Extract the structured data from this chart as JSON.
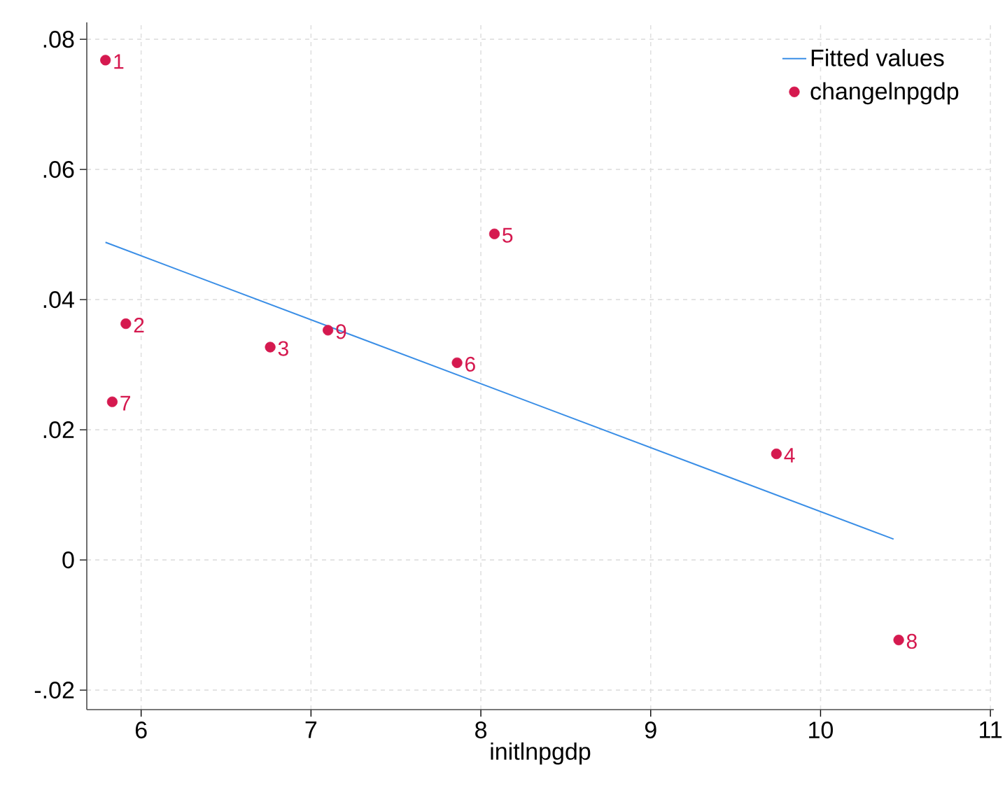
{
  "chart_data": {
    "type": "scatter",
    "xlabel": "initlnpgdp",
    "xlim": [
      5.68,
      11.02
    ],
    "ylim": [
      -0.023,
      0.0826
    ],
    "xticks": [
      6,
      7,
      8,
      9,
      10,
      11
    ],
    "yticks": [
      {
        "value": -0.02,
        "label": "-.02"
      },
      0,
      {
        "value": 0.02,
        "label": ".02"
      },
      {
        "value": 0.04,
        "label": ".04"
      },
      {
        "value": 0.06,
        "label": ".06"
      },
      {
        "value": 0.08,
        "label": ".08"
      }
    ],
    "grid": true,
    "legend": "top right",
    "series": [
      {
        "name": "Fitted values",
        "type": "line",
        "color": "#3a8ee6",
        "x": [
          5.79,
          10.43
        ],
        "values": [
          0.0488,
          0.0032
        ]
      },
      {
        "name": "changelnpgdp",
        "type": "scatter",
        "marker": "circle",
        "color": "#d5194f",
        "x": [
          5.79,
          5.91,
          6.76,
          9.74,
          8.08,
          7.86,
          5.83,
          10.46,
          7.1
        ],
        "values": [
          0.0768,
          0.0363,
          0.0327,
          0.0163,
          0.0501,
          0.0303,
          0.0243,
          -0.0123,
          0.0353
        ]
      }
    ],
    "annotations": [
      {
        "text": "1",
        "x": 5.79,
        "y": 0.0768
      },
      {
        "text": "2",
        "x": 5.91,
        "y": 0.0363
      },
      {
        "text": "3",
        "x": 6.76,
        "y": 0.0327
      },
      {
        "text": "4",
        "x": 9.74,
        "y": 0.0163
      },
      {
        "text": "5",
        "x": 8.08,
        "y": 0.0501
      },
      {
        "text": "6",
        "x": 7.86,
        "y": 0.0303
      },
      {
        "text": "7",
        "x": 5.83,
        "y": 0.0243
      },
      {
        "text": "8",
        "x": 10.46,
        "y": -0.0123
      },
      {
        "text": "9",
        "x": 7.1,
        "y": 0.0353
      }
    ]
  }
}
